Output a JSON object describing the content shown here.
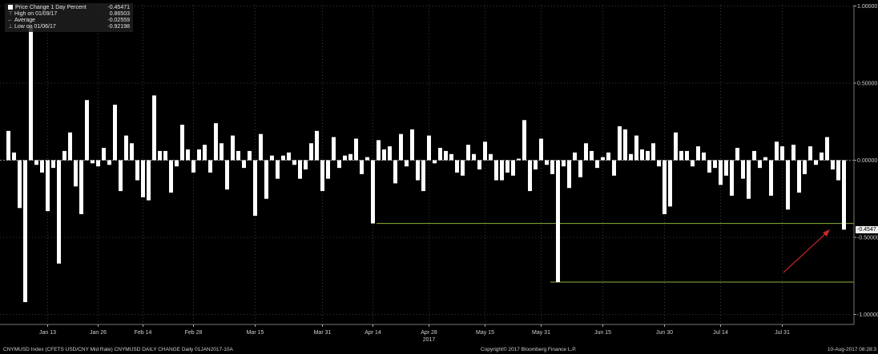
{
  "legend": {
    "title": "Price Change 1 Day Percent",
    "title_value": "-0.45471",
    "high_label": "High on 01/09/17",
    "high_value": "0.86503",
    "avg_label": "Average",
    "avg_value": "-0.02559",
    "low_label": "Low on 01/06/17",
    "low_value": "-0.92198"
  },
  "footer": {
    "left": "CNYMUSD Index (CFETS USD/CNY Mid Rate) CNYMUSD DAILY CHANGE  Daily 01JAN2017-10A",
    "center": "Copyright© 2017 Bloomberg Finance L.P.",
    "right": "10-Aug-2017 08:28:3"
  },
  "current_value_label": "-0.4547",
  "colors": {
    "bars": "#ffffff",
    "background": "#000000",
    "reference_lines": "#8fb23a",
    "arrow": "#c0282a",
    "grid": "#3a3a3a"
  },
  "chart_data": {
    "type": "bar",
    "title": "",
    "xlabel": "",
    "ylabel": "",
    "ylim": [
      -1.08,
      1.0
    ],
    "yticks": [
      1.0,
      0.5,
      0.0,
      -0.5,
      -1.0
    ],
    "ytick_labels": [
      "1.00000",
      "0.50000",
      "0.00000",
      "-0.50000",
      "-1.00000"
    ],
    "grid": true,
    "x_tick_labels": [
      {
        "label": "Jan 13",
        "index": 7
      },
      {
        "label": "Jan 26",
        "index": 16
      },
      {
        "label": "Feb 14",
        "index": 24
      },
      {
        "label": "Feb 28",
        "index": 33
      },
      {
        "label": "Mar 15",
        "index": 44
      },
      {
        "label": "Mar 31",
        "index": 56
      },
      {
        "label": "Apr 14",
        "index": 65
      },
      {
        "label": "Apr 28",
        "index": 75
      },
      {
        "label": "May 15",
        "index": 85
      },
      {
        "label": "May 31",
        "index": 95
      },
      {
        "label": "Jun 15",
        "index": 106
      },
      {
        "label": "Jun 30",
        "index": 117
      },
      {
        "label": "Jul 14",
        "index": 127
      },
      {
        "label": "Jul 31",
        "index": 138
      }
    ],
    "year_label": "2017",
    "year_index": 75,
    "reference_lines": [
      {
        "value": -0.41,
        "from_index": 66
      },
      {
        "value": -0.79,
        "from_index": 97
      }
    ],
    "values": [
      0.19,
      0.05,
      -0.31,
      -0.92,
      0.87,
      -0.03,
      -0.08,
      -0.33,
      -0.05,
      -0.67,
      0.06,
      0.18,
      -0.17,
      -0.35,
      0.39,
      -0.02,
      -0.04,
      0.08,
      -0.03,
      0.36,
      -0.2,
      0.16,
      0.11,
      -0.13,
      -0.24,
      -0.26,
      0.42,
      0.06,
      0.06,
      -0.21,
      -0.04,
      0.23,
      0.07,
      -0.08,
      0.07,
      0.1,
      -0.08,
      0.24,
      0.11,
      -0.19,
      0.16,
      0.06,
      -0.05,
      0.06,
      -0.36,
      0.17,
      -0.25,
      0.03,
      -0.12,
      0.03,
      0.05,
      -0.03,
      -0.12,
      -0.06,
      0.11,
      0.19,
      -0.2,
      -0.12,
      0.15,
      -0.05,
      0.03,
      0.04,
      0.14,
      -0.09,
      0.02,
      -0.41,
      0.13,
      0.07,
      0.09,
      -0.15,
      0.17,
      -0.04,
      0.2,
      -0.13,
      -0.2,
      0.16,
      -0.02,
      0.08,
      0.06,
      0.04,
      -0.08,
      -0.1,
      0.1,
      0.04,
      -0.06,
      0.12,
      0.04,
      -0.13,
      -0.13,
      -0.08,
      -0.1,
      0.01,
      0.26,
      -0.2,
      -0.06,
      0.14,
      -0.03,
      -0.09,
      -0.79,
      -0.04,
      -0.18,
      0.05,
      -0.11,
      0.11,
      0.06,
      -0.05,
      0.02,
      0.05,
      -0.1,
      0.22,
      0.2,
      0.04,
      0.16,
      0.07,
      0.06,
      0.11,
      -0.04,
      -0.35,
      -0.3,
      0.18,
      0.06,
      0.06,
      -0.04,
      0.09,
      0.05,
      -0.08,
      -0.05,
      -0.16,
      -0.1,
      -0.23,
      0.08,
      -0.12,
      -0.25,
      0.06,
      -0.05,
      0.02,
      -0.23,
      0.12,
      0.09,
      -0.32,
      0.1,
      -0.21,
      -0.09,
      0.09,
      -0.03,
      0.05,
      0.15,
      -0.06,
      -0.13,
      -0.45
    ]
  }
}
